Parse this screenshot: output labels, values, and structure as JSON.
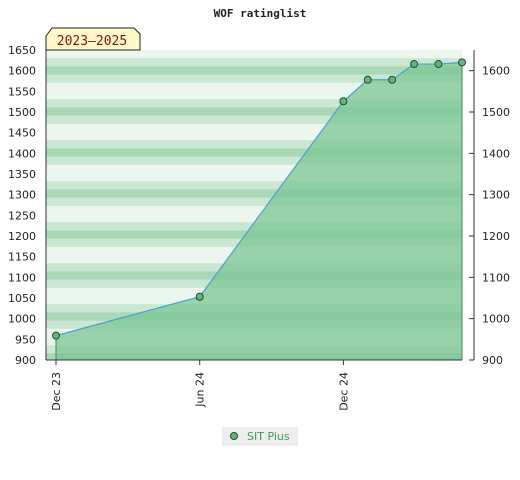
{
  "colors": {
    "area_fill": "#7cc594",
    "line": "#4c9fcf",
    "marker_fill": "#63b57b",
    "marker_stroke": "#1f4d2b",
    "band_light": "#eaf6ee",
    "band_mid": "#c9e7d2",
    "band_dark": "#a9d8b6",
    "badge_bg": "#fff8c8",
    "legend_text": "#3a9a58"
  },
  "chart_data": {
    "type": "area",
    "title": "WOF ratinglist",
    "badge": "2023–2025",
    "ylim": [
      900,
      1650
    ],
    "y_ticks_left": [
      900,
      950,
      1000,
      1050,
      1100,
      1150,
      1200,
      1250,
      1300,
      1350,
      1400,
      1450,
      1500,
      1550,
      1600,
      1650
    ],
    "y_ticks_right": [
      900,
      1000,
      1100,
      1200,
      1300,
      1400,
      1500,
      1600
    ],
    "x_tick_labels": [
      "Dec 23",
      "Jun 24",
      "Dec 24"
    ],
    "x_ticks": [
      "2023-12-01",
      "2024-06-01",
      "2024-12-01"
    ],
    "grid": true,
    "legend_position": "bottom",
    "series": [
      {
        "name": "SIT Pius",
        "x": [
          "2023-12-01",
          "2024-06-01",
          "2024-12-01",
          "2025-01-01",
          "2025-02-01",
          "2025-03-01",
          "2025-04-01",
          "2025-05-01"
        ],
        "y": [
          959,
          1053,
          1526,
          1578,
          1578,
          1616,
          1616,
          1620
        ]
      }
    ]
  }
}
